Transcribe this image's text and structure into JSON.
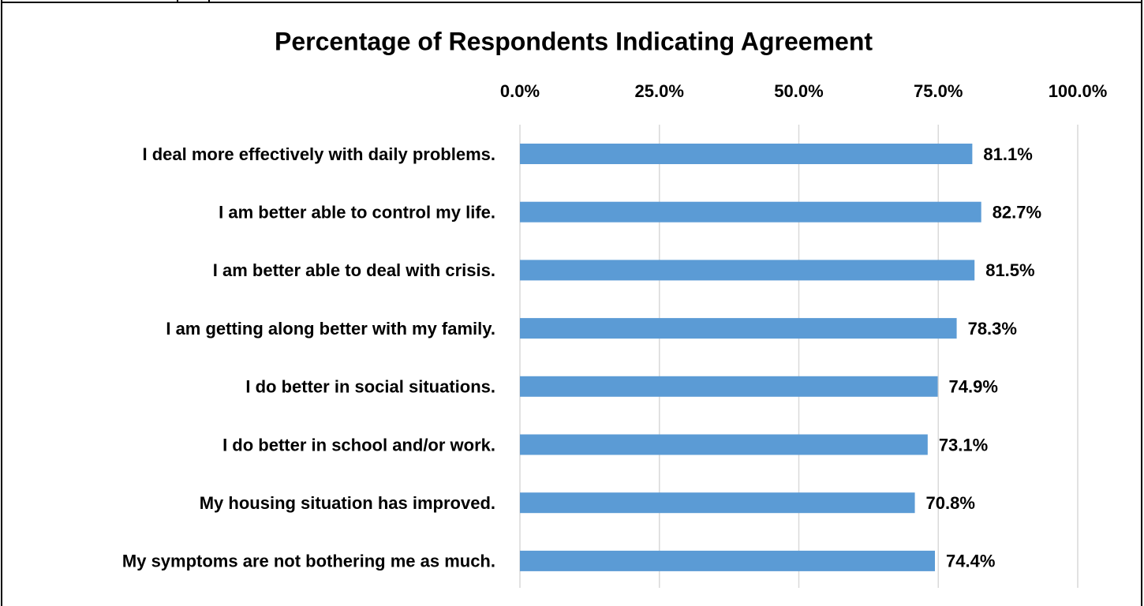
{
  "chart_data": {
    "type": "bar",
    "orientation": "horizontal",
    "title": "Percentage of Respondents Indicating Agreement",
    "categories": [
      "I deal more effectively with daily problems.",
      "I am better able to control my life.",
      "I am better able to deal with crisis.",
      "I am getting along better with my family.",
      "I do better in social situations.",
      "I do better in school and/or work.",
      "My housing situation has improved.",
      "My symptoms are not bothering me as much."
    ],
    "values": [
      81.1,
      82.7,
      81.5,
      78.3,
      74.9,
      73.1,
      70.8,
      74.4
    ],
    "value_labels": [
      "81.1%",
      "82.7%",
      "81.5%",
      "78.3%",
      "74.9%",
      "73.1%",
      "70.8%",
      "74.4%"
    ],
    "color": "#5b9bd5",
    "xlim": [
      0,
      100
    ],
    "xticks": [
      {
        "value": 0,
        "label": "0.0%"
      },
      {
        "value": 25,
        "label": "25.0%"
      },
      {
        "value": 50,
        "label": "50.0%"
      },
      {
        "value": 75,
        "label": "75.0%"
      },
      {
        "value": 100,
        "label": "100.0%"
      }
    ],
    "grid": true
  }
}
